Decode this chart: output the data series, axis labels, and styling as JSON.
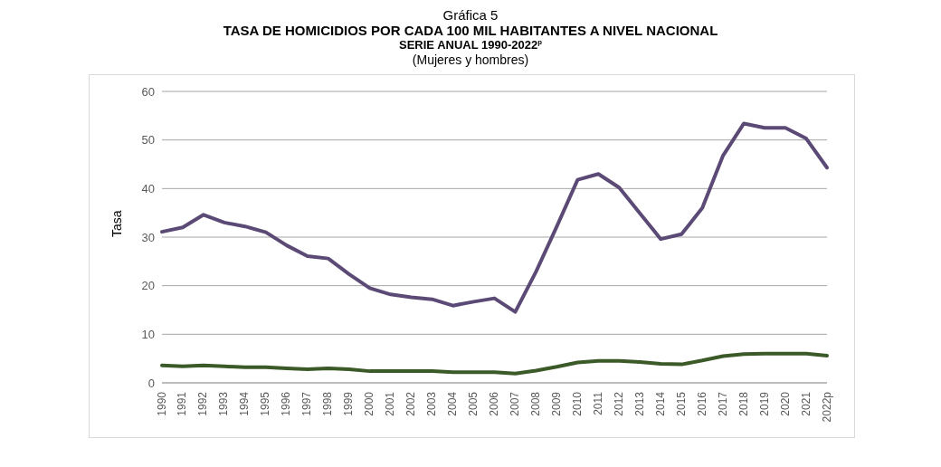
{
  "chart_data": {
    "type": "line",
    "title": "TASA DE HOMICIDIOS POR CADA 100 MIL HABITANTES A NIVEL NACIONAL",
    "subtitle": "SERIE ANUAL 1990-2022$^{p}$",
    "annotations": [
      "Gráfica 5",
      "(Mujeres y hombres)"
    ],
    "ylabel": "Tasa",
    "categories": [
      "1990",
      "1991",
      "1992",
      "1993",
      "1994",
      "1995",
      "1996",
      "1997",
      "1998",
      "1999",
      "2000",
      "2001",
      "2002",
      "2003",
      "2004",
      "2005",
      "2006",
      "2007",
      "2008",
      "2009",
      "2010",
      "2011",
      "2012",
      "2013",
      "2014",
      "2015",
      "2016",
      "2017",
      "2018",
      "2019",
      "2020",
      "2021",
      "2022p"
    ],
    "series": [
      {
        "color": "#5b4a75",
        "values": [
          31.1,
          32,
          34.6,
          33,
          32.2,
          31,
          28.3,
          26.1,
          25.6,
          22.4,
          19.5,
          18.2,
          17.6,
          17.2,
          15.9,
          16.7,
          17.4,
          14.6,
          22.9,
          32.2,
          41.8,
          43,
          40.2,
          34.9,
          29.6,
          30.6,
          36,
          46.8,
          53.4,
          52.5,
          52.5,
          50.3,
          44.3
        ]
      },
      {
        "color": "#3b5a28",
        "values": [
          3.6,
          3.4,
          3.6,
          3.4,
          3.2,
          3.2,
          3.0,
          2.8,
          3.0,
          2.8,
          2.4,
          2.4,
          2.4,
          2.4,
          2.2,
          2.2,
          2.2,
          1.9,
          2.5,
          3.3,
          4.2,
          4.5,
          4.5,
          4.3,
          3.9,
          3.8,
          4.6,
          5.5,
          5.9,
          6.0,
          6.0,
          6.0,
          5.6
        ]
      }
    ],
    "ylim": [
      0,
      60
    ],
    "yticks": [
      0,
      10,
      20,
      30,
      40,
      50,
      60
    ],
    "grid": "y",
    "marker": "none",
    "line_style": "solid",
    "legend": false
  }
}
